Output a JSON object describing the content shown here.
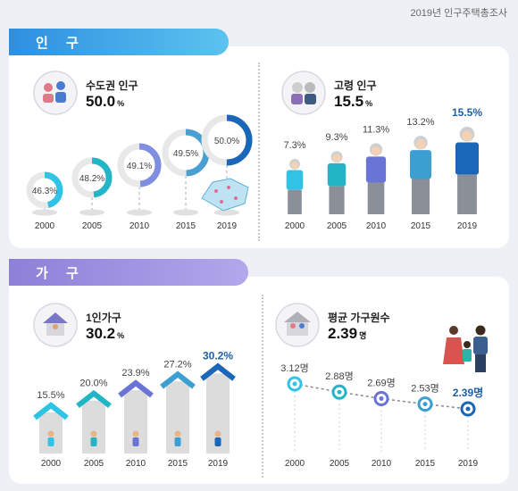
{
  "source": "2019년 인구주택총조사",
  "sections": {
    "population": {
      "title": "인 구"
    },
    "household": {
      "title": "가 구"
    }
  },
  "colors": {
    "population_tab": "#2d8fe0",
    "household_tab": "#8e7fd8",
    "highlight": "#1e5fa8",
    "donut_track": "#e8e8e8",
    "house_gray": "#dcdcdc"
  },
  "chart_data": [
    {
      "type": "donut",
      "title": "수도권 인구",
      "headline_value": "50.0",
      "headline_unit": "%",
      "categories": [
        "2000",
        "2005",
        "2010",
        "2015",
        "2019"
      ],
      "values": [
        46.3,
        48.2,
        49.1,
        49.5,
        50.0
      ],
      "labels": [
        "46.3%",
        "48.2%",
        "49.1%",
        "49.5%",
        "50.0%"
      ],
      "colors": [
        "#2fc3e6",
        "#22b5c6",
        "#7f8ee0",
        "#4a9fd2",
        "#1a66b8"
      ],
      "icon": "metro-people-icon"
    },
    {
      "type": "pictograph",
      "title": "고령 인구",
      "headline_value": "15.5",
      "headline_unit": "%",
      "categories": [
        "2000",
        "2005",
        "2010",
        "2015",
        "2019"
      ],
      "values": [
        7.3,
        9.3,
        11.3,
        13.2,
        15.5
      ],
      "labels": [
        "7.3%",
        "9.3%",
        "11.3%",
        "13.2%",
        "15.5%"
      ],
      "colors": [
        "#2fc3e6",
        "#22b5c6",
        "#6a73d6",
        "#3b9fd2",
        "#1a66b8"
      ],
      "icon": "elderly-couple-icon"
    },
    {
      "type": "bar",
      "title": "1인가구",
      "headline_value": "30.2",
      "headline_unit": "%",
      "categories": [
        "2000",
        "2005",
        "2010",
        "2015",
        "2019"
      ],
      "values": [
        15.5,
        20.0,
        23.9,
        27.2,
        30.2
      ],
      "labels": [
        "15.5%",
        "20.0%",
        "23.9%",
        "27.2%",
        "30.2%"
      ],
      "colors": [
        "#2fc3e6",
        "#22b5c6",
        "#6a73d6",
        "#3b9fd2",
        "#1a66b8"
      ],
      "icon": "single-house-icon"
    },
    {
      "type": "line",
      "title": "평균 가구원수",
      "headline_value": "2.39",
      "headline_unit": "명",
      "categories": [
        "2000",
        "2005",
        "2010",
        "2015",
        "2019"
      ],
      "values": [
        3.12,
        2.88,
        2.69,
        2.53,
        2.39
      ],
      "labels": [
        "3.12명",
        "2.88명",
        "2.69명",
        "2.53명",
        "2.39명"
      ],
      "colors": [
        "#2fc3e6",
        "#22b5c6",
        "#6a73d6",
        "#3b9fd2",
        "#1a66b8"
      ],
      "icon": "family-house-icon"
    }
  ]
}
